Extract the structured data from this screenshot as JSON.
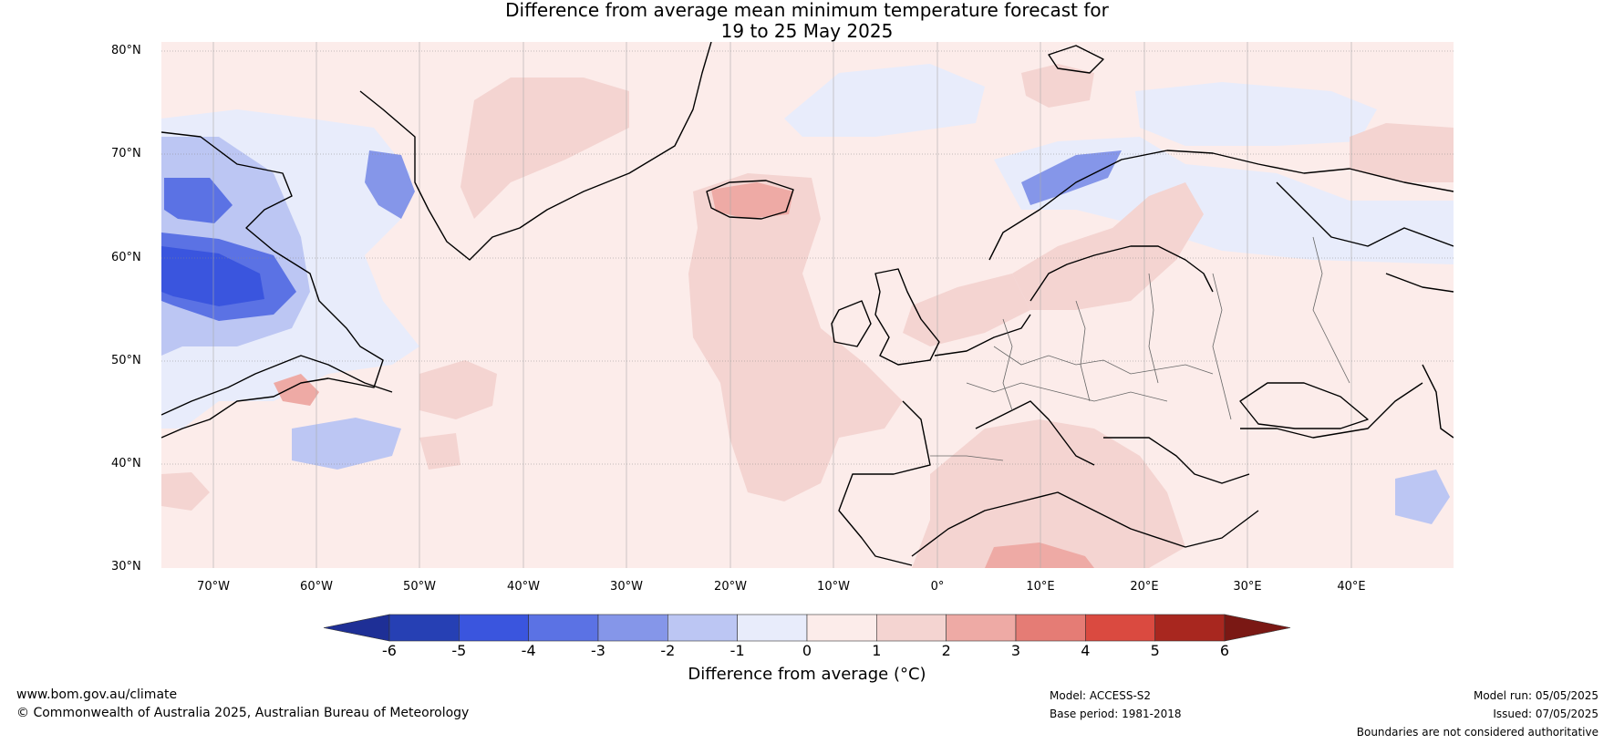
{
  "title": {
    "line1": "Difference from average mean minimum temperature forecast for",
    "line2": "19 to 25 May 2025"
  },
  "lat_labels": [
    "80°N",
    "70°N",
    "60°N",
    "50°N",
    "40°N",
    "30°N"
  ],
  "lon_labels": [
    "70°W",
    "60°W",
    "50°W",
    "40°W",
    "30°W",
    "20°W",
    "10°W",
    "0°",
    "10°E",
    "20°E",
    "30°E",
    "40°E"
  ],
  "colorbar": {
    "ticks": [
      "-6",
      "-5",
      "-4",
      "-3",
      "-2",
      "-1",
      "0",
      "1",
      "2",
      "3",
      "4",
      "5",
      "6"
    ],
    "colors": [
      "#1e2f96",
      "#2640b4",
      "#3a55de",
      "#5b72e4",
      "#8596e9",
      "#bcc6f3",
      "#e8ecfb",
      "#fcecea",
      "#f4d4d1",
      "#eeaaa5",
      "#e57c75",
      "#da4a40",
      "#a8271f",
      "#7a1814"
    ],
    "label": "Difference from average (°C)"
  },
  "footer": {
    "website": "www.bom.gov.au/climate",
    "copyright": "© Commonwealth of Australia 2025, Australian Bureau of Meteorology",
    "model": "Model: ACCESS-S2",
    "base_period": "Base period: 1981-2018",
    "model_run": "Model run: 05/05/2025",
    "issued": "Issued: 07/05/2025",
    "disclaimer": "Boundaries are not considered authoritative"
  }
}
